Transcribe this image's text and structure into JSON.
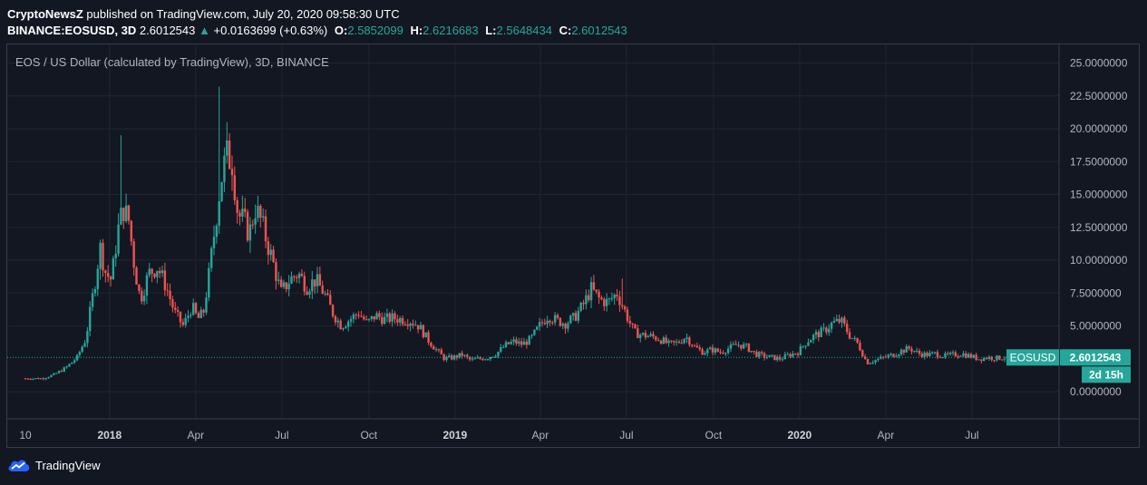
{
  "header": {
    "publisher": "CryptoNewsZ",
    "published_text": "published on TradingView.com, July 20, 2020 09:58:30 UTC",
    "symbol": "BINANCE:EOSUSD, 3D",
    "last": "2.6012543",
    "change_arrow": "▲",
    "change": "+0.0163699 (+0.63%)",
    "o_label": "O:",
    "o": "2.5852099",
    "h_label": "H:",
    "h": "2.6216683",
    "l_label": "L:",
    "l": "2.5648434",
    "c_label": "C:",
    "c": "2.6012543"
  },
  "chart_title": "EOS / US Dollar (calculated by TradingView), 3D, BINANCE",
  "price_tag": {
    "symbol": "EOSUSD",
    "value": "2.6012543",
    "countdown": "2d 15h"
  },
  "footer": {
    "brand": "TradingView"
  },
  "colors": {
    "up": "#26a69a",
    "down": "#ef5350",
    "background": "#131722",
    "grid": "#1f2430",
    "text": "#b2b5be"
  },
  "chart_data": {
    "type": "candlestick",
    "y_ticks": [
      "25.0000000",
      "22.5000000",
      "20.0000000",
      "17.5000000",
      "15.0000000",
      "12.5000000",
      "10.0000000",
      "7.5000000",
      "5.0000000",
      "0.0000000"
    ],
    "ylim": [
      -2,
      26
    ],
    "x_ticks": [
      {
        "label": "10",
        "t": 0,
        "bold": false
      },
      {
        "label": "2018",
        "t": 2.93,
        "bold": true
      },
      {
        "label": "Apr",
        "t": 5.93,
        "bold": false
      },
      {
        "label": "Jul",
        "t": 8.93,
        "bold": false
      },
      {
        "label": "Oct",
        "t": 11.96,
        "bold": false
      },
      {
        "label": "2019",
        "t": 14.96,
        "bold": true
      },
      {
        "label": "Apr",
        "t": 17.93,
        "bold": false
      },
      {
        "label": "Jul",
        "t": 20.93,
        "bold": false
      },
      {
        "label": "Oct",
        "t": 23.96,
        "bold": false
      },
      {
        "label": "2020",
        "t": 26.96,
        "bold": true
      },
      {
        "label": "Apr",
        "t": 29.96,
        "bold": false
      },
      {
        "label": "Jul",
        "t": 32.96,
        "bold": false
      }
    ],
    "x_range_months": [
      0,
      37.3
    ],
    "last_price": 2.6012543,
    "close_path": [
      [
        0,
        1.0
      ],
      [
        0.6,
        1.0
      ],
      [
        1.0,
        1.3
      ],
      [
        1.4,
        1.8
      ],
      [
        1.8,
        2.6
      ],
      [
        2.1,
        4.0
      ],
      [
        2.4,
        8.0
      ],
      [
        2.6,
        11.0
      ],
      [
        2.8,
        9.0
      ],
      [
        3.0,
        8.5
      ],
      [
        3.2,
        12.0
      ],
      [
        3.4,
        14.0
      ],
      [
        3.6,
        13.0
      ],
      [
        3.8,
        9.5
      ],
      [
        4.0,
        7.0
      ],
      [
        4.3,
        9.0
      ],
      [
        4.6,
        9.5
      ],
      [
        4.9,
        8.0
      ],
      [
        5.2,
        6.0
      ],
      [
        5.5,
        5.0
      ],
      [
        5.8,
        6.5
      ],
      [
        6.0,
        5.5
      ],
      [
        6.2,
        6.0
      ],
      [
        6.4,
        9.0
      ],
      [
        6.6,
        12.5
      ],
      [
        6.8,
        16.0
      ],
      [
        7.0,
        18.0
      ],
      [
        7.2,
        17.5
      ],
      [
        7.4,
        13.5
      ],
      [
        7.6,
        13.0
      ],
      [
        7.8,
        12.0
      ],
      [
        8.0,
        14.0
      ],
      [
        8.2,
        13.0
      ],
      [
        8.4,
        11.5
      ],
      [
        8.6,
        10.0
      ],
      [
        8.9,
        7.5
      ],
      [
        9.2,
        8.5
      ],
      [
        9.5,
        9.0
      ],
      [
        9.8,
        8.0
      ],
      [
        10.1,
        8.5
      ],
      [
        10.4,
        7.5
      ],
      [
        10.7,
        6.0
      ],
      [
        11.0,
        5.0
      ],
      [
        11.3,
        5.5
      ],
      [
        11.6,
        6.0
      ],
      [
        11.9,
        5.2
      ],
      [
        12.2,
        5.8
      ],
      [
        12.5,
        5.5
      ],
      [
        12.8,
        5.6
      ],
      [
        13.1,
        5.5
      ],
      [
        13.4,
        5.4
      ],
      [
        13.7,
        5.0
      ],
      [
        14.0,
        4.0
      ],
      [
        14.3,
        3.2
      ],
      [
        14.6,
        2.5
      ],
      [
        14.9,
        2.6
      ],
      [
        15.2,
        2.8
      ],
      [
        15.5,
        2.4
      ],
      [
        15.8,
        2.5
      ],
      [
        16.1,
        2.6
      ],
      [
        16.4,
        2.9
      ],
      [
        16.7,
        3.5
      ],
      [
        17.0,
        3.8
      ],
      [
        17.3,
        3.6
      ],
      [
        17.6,
        4.0
      ],
      [
        17.9,
        5.0
      ],
      [
        18.2,
        5.8
      ],
      [
        18.5,
        5.4
      ],
      [
        18.8,
        5.2
      ],
      [
        19.1,
        5.6
      ],
      [
        19.4,
        6.5
      ],
      [
        19.7,
        7.8
      ],
      [
        20.0,
        7.0
      ],
      [
        20.3,
        6.8
      ],
      [
        20.6,
        7.5
      ],
      [
        20.9,
        6.0
      ],
      [
        21.2,
        4.5
      ],
      [
        21.5,
        4.3
      ],
      [
        21.8,
        4.2
      ],
      [
        22.1,
        4.0
      ],
      [
        22.4,
        3.6
      ],
      [
        22.7,
        3.7
      ],
      [
        23.0,
        4.2
      ],
      [
        23.3,
        3.4
      ],
      [
        23.6,
        3.0
      ],
      [
        23.9,
        3.2
      ],
      [
        24.2,
        3.0
      ],
      [
        24.5,
        3.3
      ],
      [
        24.8,
        3.6
      ],
      [
        25.1,
        3.4
      ],
      [
        25.4,
        2.9
      ],
      [
        25.7,
        2.7
      ],
      [
        26.0,
        2.6
      ],
      [
        26.3,
        2.5
      ],
      [
        26.6,
        2.8
      ],
      [
        26.9,
        3.0
      ],
      [
        27.2,
        3.8
      ],
      [
        27.5,
        4.3
      ],
      [
        27.8,
        4.6
      ],
      [
        28.1,
        5.2
      ],
      [
        28.4,
        5.4
      ],
      [
        28.7,
        4.3
      ],
      [
        29.0,
        3.6
      ],
      [
        29.3,
        2.2
      ],
      [
        29.6,
        2.4
      ],
      [
        29.9,
        2.6
      ],
      [
        30.2,
        2.8
      ],
      [
        30.5,
        3.1
      ],
      [
        30.8,
        3.3
      ],
      [
        31.1,
        2.9
      ],
      [
        31.4,
        2.8
      ],
      [
        31.7,
        2.9
      ],
      [
        32.0,
        2.7
      ],
      [
        32.3,
        2.8
      ],
      [
        32.6,
        2.9
      ],
      [
        32.9,
        2.7
      ],
      [
        33.2,
        2.5
      ],
      [
        33.5,
        2.6
      ],
      [
        33.8,
        2.55
      ],
      [
        34.1,
        2.6
      ]
    ],
    "spikes": [
      {
        "t": 3.3,
        "high": 19.5
      },
      {
        "t": 6.75,
        "high": 23.2
      },
      {
        "t": 7.0,
        "high": 20.5
      },
      {
        "t": 20.8,
        "high": 8.6
      }
    ]
  }
}
